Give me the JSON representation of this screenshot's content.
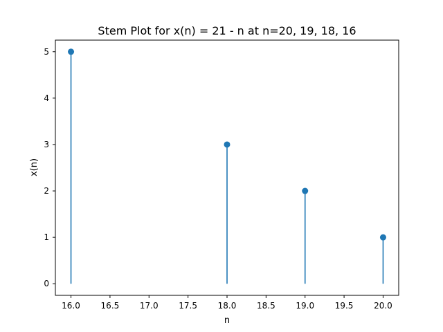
{
  "chart_data": {
    "type": "stem",
    "title": "Stem Plot for x(n) = 21 - n at n=20, 19, 18, 16",
    "xlabel": "n",
    "ylabel": "x(n)",
    "x": [
      20,
      19,
      18,
      16
    ],
    "y": [
      1,
      2,
      3,
      5
    ],
    "xlim": [
      15.8,
      20.2
    ],
    "ylim": [
      -0.25,
      5.25
    ],
    "xticks": [
      "16.0",
      "16.5",
      "17.0",
      "17.5",
      "18.0",
      "18.5",
      "19.0",
      "19.5",
      "20.0"
    ],
    "yticks": [
      "0",
      "1",
      "2",
      "3",
      "4",
      "5"
    ],
    "grid": false,
    "color": "#1f77b4"
  }
}
